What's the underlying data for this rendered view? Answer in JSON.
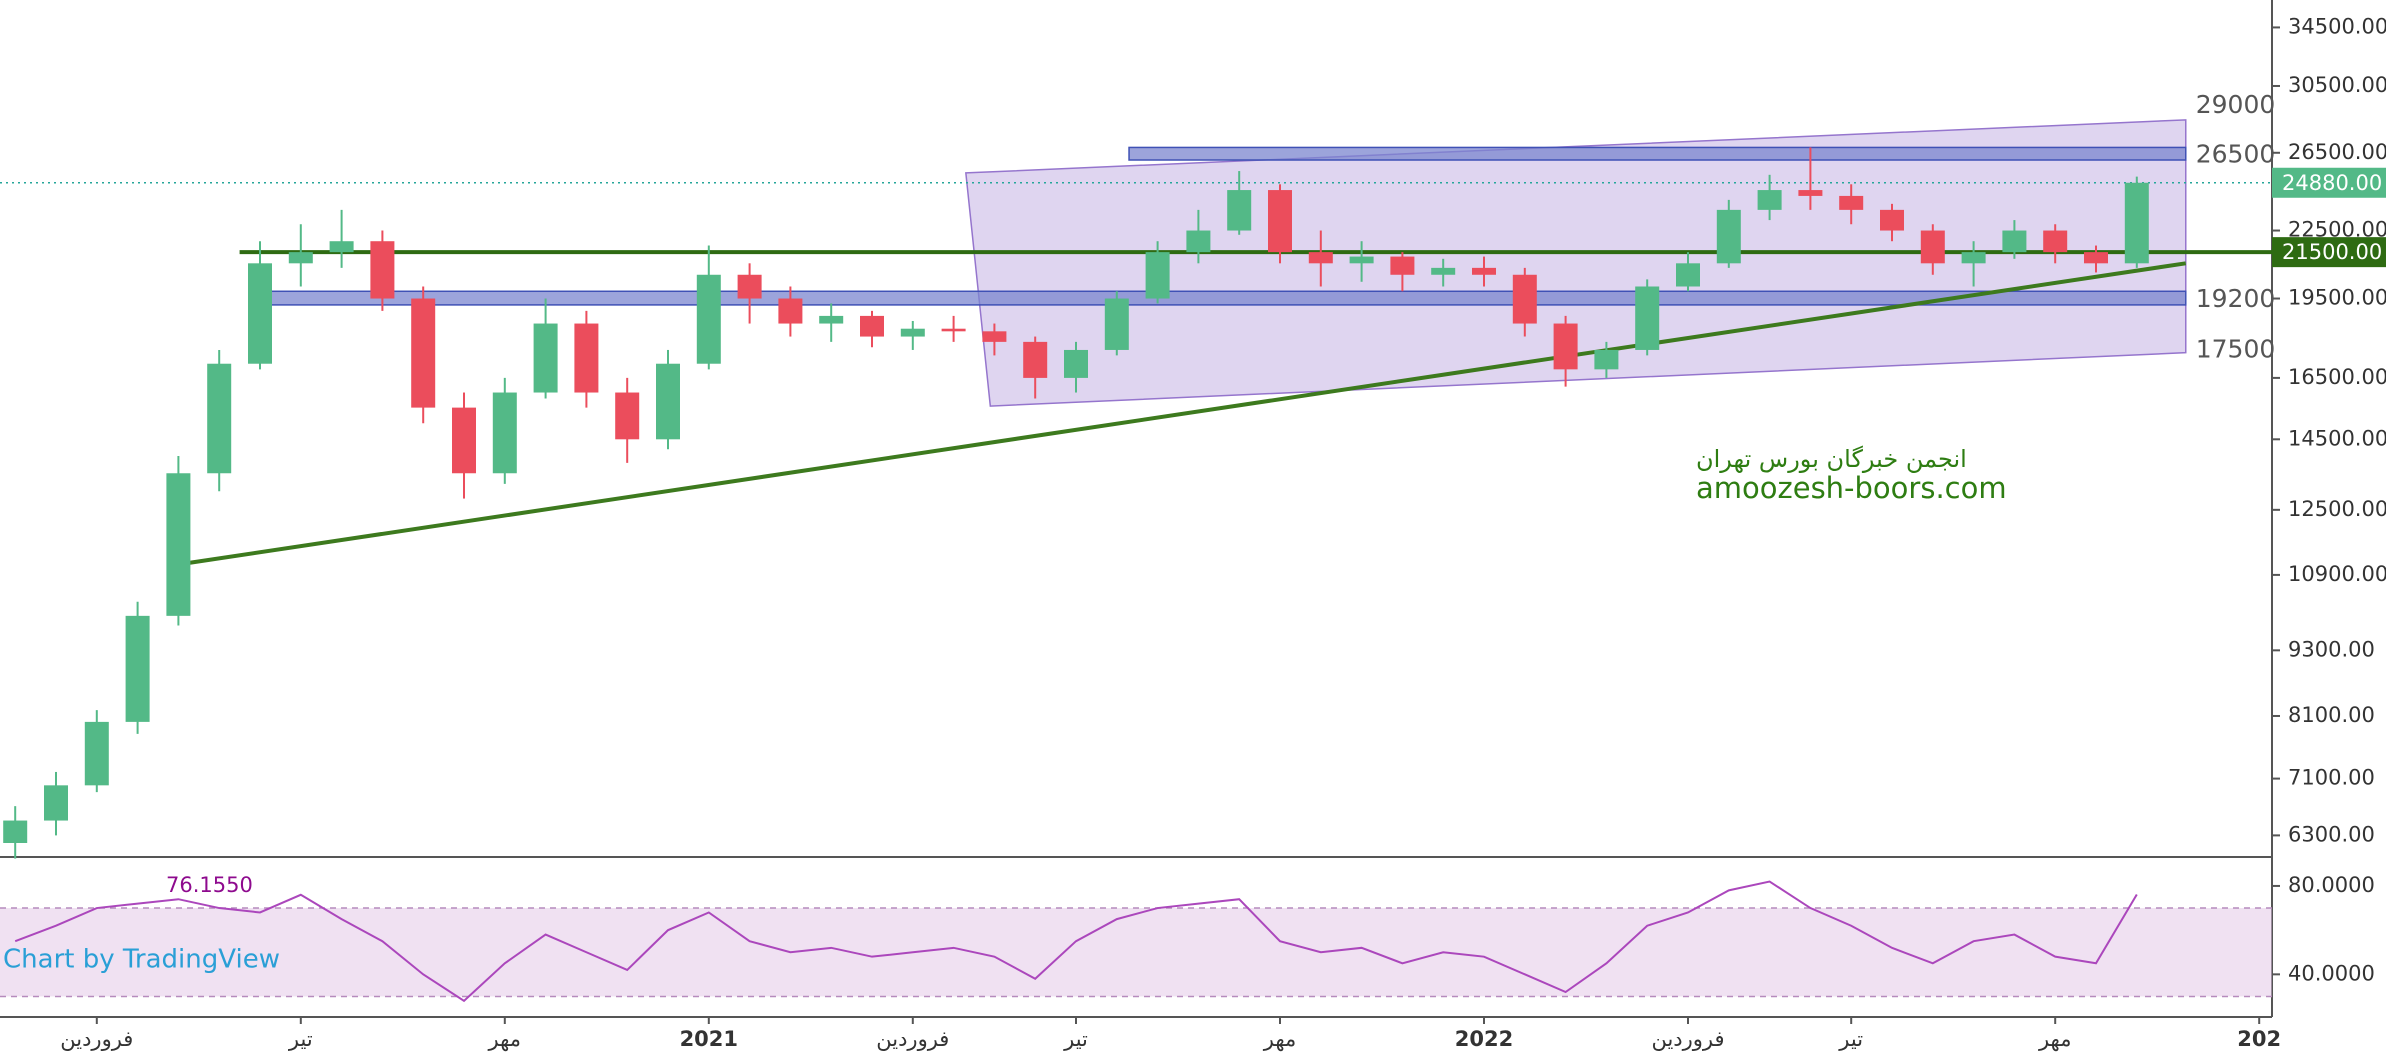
{
  "chart_data": [
    {
      "type": "candlestick",
      "categories": [
        null,
        null,
        "فروردین",
        null,
        null,
        null,
        null,
        "تیر",
        null,
        null,
        null,
        null,
        "مهر",
        null,
        null,
        null,
        null,
        "2021",
        null,
        null,
        null,
        null,
        "فروردین",
        null,
        null,
        null,
        "تیر",
        null,
        null,
        null,
        null,
        "مهر",
        null,
        null,
        null,
        null,
        "2022",
        null,
        null,
        null,
        null,
        "فروردین",
        null,
        null,
        null,
        "تیر",
        null,
        null,
        null,
        null,
        "مهر",
        null,
        null,
        null,
        null,
        "202"
      ],
      "open": [
        6200,
        6500,
        7000,
        8000,
        10000,
        13500,
        17000,
        21000,
        21500,
        22000,
        19500,
        15500,
        13500,
        16000,
        18500,
        16000,
        14500,
        17000,
        20500,
        19500,
        18500,
        18800,
        18000,
        18300,
        18200,
        17800,
        16500,
        17500,
        19500,
        21500,
        22500,
        24500,
        21500,
        21000,
        21300,
        20500,
        20800,
        20500,
        18500,
        16800,
        17500,
        20000,
        21000,
        23500,
        24500,
        24200,
        23500,
        22500,
        21000,
        21500,
        22500,
        21500,
        21000,
        null,
        null,
        null
      ],
      "high": [
        6700,
        7200,
        8200,
        10300,
        14000,
        17500,
        22000,
        22800,
        23500,
        22500,
        20000,
        16000,
        16500,
        19500,
        19000,
        16500,
        17500,
        21800,
        21000,
        20000,
        19300,
        19000,
        18600,
        18800,
        18500,
        18000,
        17800,
        19800,
        22000,
        23500,
        25500,
        24800,
        22500,
        22000,
        21500,
        21200,
        21300,
        20800,
        18800,
        17800,
        20300,
        21500,
        24000,
        25300,
        26800,
        24800,
        23800,
        22800,
        22000,
        23000,
        22800,
        21800,
        25200,
        null,
        null,
        null
      ],
      "low": [
        6000,
        6300,
        6900,
        7800,
        9800,
        13000,
        16800,
        20000,
        20800,
        19000,
        15000,
        12800,
        13200,
        15800,
        15500,
        13800,
        14200,
        16800,
        18500,
        18000,
        17800,
        17600,
        17500,
        17800,
        17300,
        15800,
        16000,
        17300,
        19300,
        21000,
        22300,
        21000,
        20000,
        20200,
        19800,
        20000,
        20000,
        18000,
        16200,
        16500,
        17300,
        19800,
        20800,
        23000,
        23500,
        22800,
        22000,
        20500,
        20000,
        21200,
        21000,
        20600,
        20800,
        null,
        null,
        null
      ],
      "close": [
        6500,
        7000,
        8000,
        10000,
        13500,
        17000,
        21000,
        21500,
        22000,
        19500,
        15500,
        13500,
        16000,
        18500,
        16000,
        14500,
        17000,
        20500,
        19500,
        18500,
        18800,
        18000,
        18300,
        18200,
        17800,
        16500,
        17500,
        19500,
        21500,
        22500,
        24500,
        21500,
        21000,
        21300,
        20500,
        20800,
        20500,
        18500,
        16800,
        17500,
        20000,
        21000,
        23500,
        24500,
        24200,
        23500,
        22500,
        21000,
        21500,
        22500,
        21500,
        21000,
        24880,
        null,
        null,
        null
      ],
      "up_color": "#53b987",
      "down_color": "#eb4d5c",
      "log_scale": true,
      "ylim": [
        6020,
        36550
      ],
      "yticks": [
        {
          "value": 6300,
          "label": "6300.00"
        },
        {
          "value": 7100,
          "label": "7100.00"
        },
        {
          "value": 8100,
          "label": "8100.00"
        },
        {
          "value": 9300,
          "label": "9300.00"
        },
        {
          "value": 10900,
          "label": "10900.00"
        },
        {
          "value": 12500,
          "label": "12500.00"
        },
        {
          "value": 14500,
          "label": "14500.00"
        },
        {
          "value": 16500,
          "label": "16500.00"
        },
        {
          "value": 19500,
          "label": "19500.00"
        },
        {
          "value": 22500,
          "label": "22500.00"
        },
        {
          "value": 26500,
          "label": "26500.00"
        },
        {
          "value": 30500,
          "label": "30500.00"
        },
        {
          "value": 34500,
          "label": "34500.00"
        }
      ],
      "last_price": {
        "value": 24880,
        "label": "24880.00",
        "color": "#53b987"
      },
      "level": {
        "value": 21500,
        "label": "21500.00",
        "from": 5.5,
        "color": "#2e6b12"
      },
      "channel": {
        "upper": [
          [
            23.3,
            25400
          ],
          [
            53.2,
            28400
          ]
        ],
        "lower": [
          [
            23.9,
            15550
          ],
          [
            53.2,
            17400
          ]
        ],
        "upper_label": "29000",
        "lower_label": "17500",
        "color": "#9575cd"
      },
      "zones": [
        {
          "label": "26500",
          "from": 27.3,
          "to": 53.2,
          "top": 26800,
          "bottom": 26100
        },
        {
          "label": "19200",
          "from": 5.9,
          "to": 53.2,
          "top": 19800,
          "bottom": 19240
        }
      ],
      "trendline": {
        "points": [
          [
            4.2,
            11170
          ],
          [
            53.2,
            21000
          ]
        ],
        "color": "#3d7a1e"
      },
      "watermark": [
        "انجمن خبرگان بورس تهران",
        "amoozesh-boors.com"
      ]
    },
    {
      "type": "line",
      "values": [
        55,
        62,
        70,
        72,
        74,
        70,
        68,
        76,
        65,
        55,
        40,
        28,
        45,
        58,
        50,
        42,
        60,
        68,
        55,
        50,
        52,
        48,
        50,
        52,
        48,
        38,
        55,
        65,
        70,
        72,
        74,
        55,
        50,
        52,
        45,
        50,
        48,
        40,
        32,
        45,
        62,
        68,
        78,
        82,
        70,
        62,
        52,
        45,
        55,
        58,
        48,
        45,
        76.155,
        null,
        null,
        null
      ],
      "last_value_label": "76.1550",
      "color": "#ab47bc",
      "ylim": [
        20.7,
        93.1
      ],
      "yticks": [
        {
          "value": 80,
          "label": "80.0000"
        },
        {
          "value": 40,
          "label": "40.0000"
        }
      ],
      "band": [
        30,
        70
      ],
      "credit": "Chart by TradingView"
    }
  ]
}
